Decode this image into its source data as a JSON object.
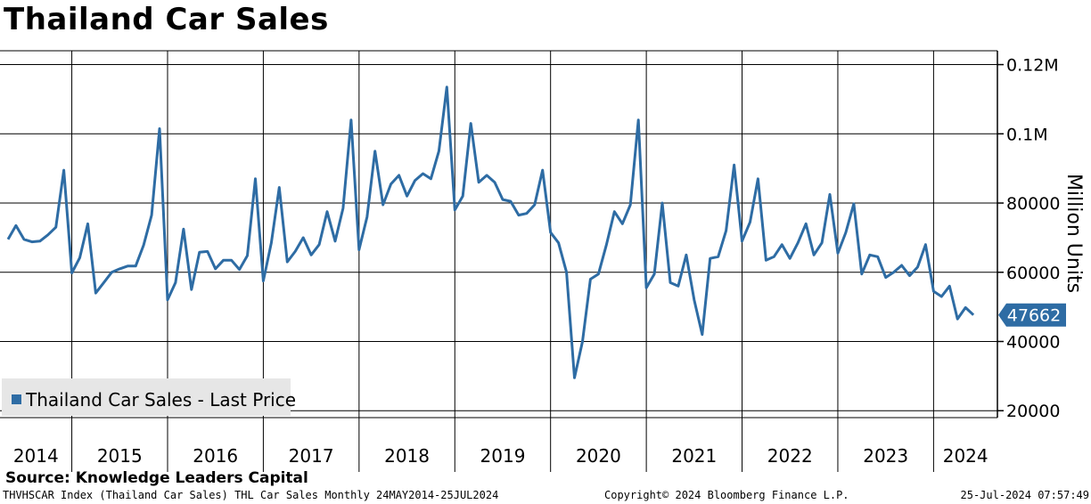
{
  "chart_data": {
    "type": "line",
    "title": "Thailand Car Sales",
    "ylabel": "Million Units",
    "yticks": [
      {
        "value": 20000,
        "label": "20000"
      },
      {
        "value": 40000,
        "label": "40000"
      },
      {
        "value": 60000,
        "label": "60000"
      },
      {
        "value": 80000,
        "label": "80000"
      },
      {
        "value": 100000,
        "label": "0.1M"
      },
      {
        "value": 120000,
        "label": "0.12M"
      }
    ],
    "ylim": [
      18000,
      124000
    ],
    "xlim": [
      "2014-04",
      "2024-09"
    ],
    "year_labels": [
      "2014",
      "2015",
      "2016",
      "2017",
      "2018",
      "2019",
      "2020",
      "2021",
      "2022",
      "2023",
      "2024"
    ],
    "grid": true,
    "legend_position": "bottom-left",
    "last_value_label": "47662",
    "series": [
      {
        "name": "Thailand Car Sales - Last Price",
        "color": "#2e6ca4",
        "start": "2014-05",
        "values": [
          69500,
          73500,
          69500,
          68800,
          69000,
          70800,
          73000,
          89500,
          59800,
          64200,
          74000,
          54000,
          57000,
          60000,
          61000,
          61800,
          61800,
          67800,
          76500,
          101500,
          52000,
          57000,
          72500,
          55000,
          65800,
          66000,
          61000,
          63500,
          63500,
          60800,
          64800,
          87000,
          57500,
          68500,
          84500,
          63000,
          66000,
          70000,
          65000,
          68000,
          77500,
          69000,
          78500,
          104000,
          66500,
          76000,
          95000,
          79500,
          85500,
          88000,
          82000,
          86500,
          88500,
          87000,
          95000,
          113500,
          78000,
          82000,
          103000,
          86000,
          88000,
          86000,
          81000,
          80500,
          76500,
          77000,
          79500,
          89500,
          71500,
          68500,
          60000,
          29500,
          40000,
          58000,
          59500,
          68000,
          77500,
          74000,
          79500,
          104000,
          55500,
          59500,
          80000,
          57000,
          56000,
          65000,
          52000,
          42000,
          64000,
          64500,
          72000,
          91000,
          69000,
          74500,
          87000,
          63500,
          64500,
          68000,
          64000,
          68500,
          74000,
          65000,
          68500,
          82500,
          65500,
          71500,
          79800,
          59500,
          65000,
          64500,
          58500,
          60000,
          62000,
          59000,
          61500,
          68000,
          54500,
          53000,
          56000,
          46500,
          49800,
          47662
        ]
      }
    ]
  },
  "source": "Source: Knowledge Leaders Capital",
  "footer": {
    "left": "THVHSCAR Index (Thailand Car Sales) THL Car Sales  Monthly 24MAY2014-25JUL2024",
    "middle": "Copyright© 2024 Bloomberg Finance L.P.",
    "right": "25-Jul-2024 07:57:49"
  }
}
